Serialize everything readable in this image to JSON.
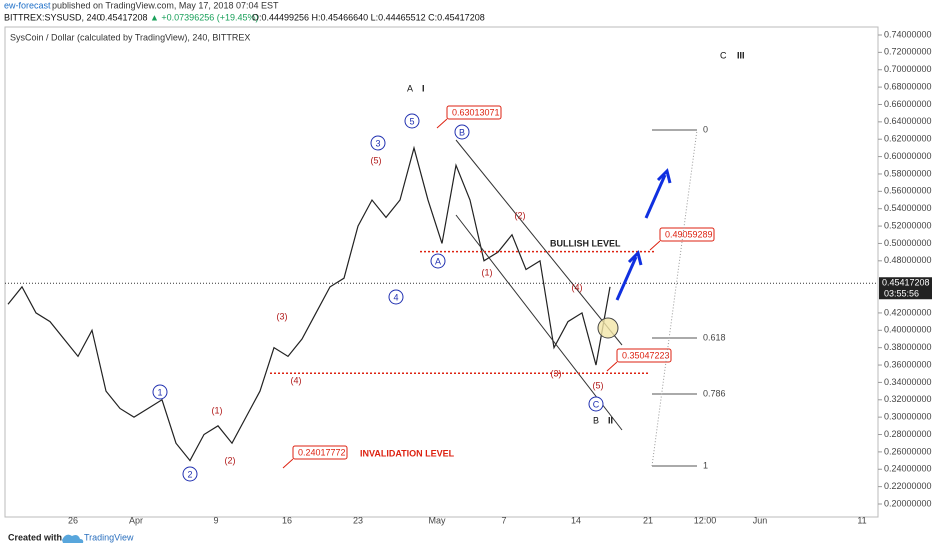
{
  "header": {
    "publisher": "ew-forecast",
    "published": "published on TradingView.com, May 17, 2018 07:04 EST",
    "symbol": "BITTREX:SYSUSD, 240",
    "last": "0.45417208",
    "change": "▲ +0.07396256 (+19.45%)",
    "ohlc": "O:0.44499256 H:0.45466640 L:0.44465512 C:0.45417208"
  },
  "chart_data": {
    "type": "line",
    "title": "SysCoin / Dollar (calculated by TradingView), 240, BITTREX",
    "values": [
      0.43,
      0.45,
      0.42,
      0.41,
      0.39,
      0.37,
      0.4,
      0.33,
      0.31,
      0.3,
      0.31,
      0.32,
      0.27,
      0.25,
      0.28,
      0.29,
      0.27,
      0.3,
      0.33,
      0.38,
      0.37,
      0.39,
      0.42,
      0.45,
      0.46,
      0.52,
      0.55,
      0.53,
      0.55,
      0.61,
      0.55,
      0.5,
      0.59,
      0.55,
      0.48,
      0.49,
      0.51,
      0.47,
      0.48,
      0.38,
      0.41,
      0.42,
      0.36,
      0.45
    ],
    "color": "#222222",
    "ylim": [
      0.2,
      0.74
    ],
    "yticks": [
      {
        "value": 0.74,
        "label": "0.74000000"
      },
      {
        "value": 0.72,
        "label": "0.72000000"
      },
      {
        "value": 0.7,
        "label": "0.70000000"
      },
      {
        "value": 0.68,
        "label": "0.68000000"
      },
      {
        "value": 0.66,
        "label": "0.66000000"
      },
      {
        "value": 0.64,
        "label": "0.64000000"
      },
      {
        "value": 0.62,
        "label": "0.62000000"
      },
      {
        "value": 0.6,
        "label": "0.60000000"
      },
      {
        "value": 0.58,
        "label": "0.58000000"
      },
      {
        "value": 0.56,
        "label": "0.56000000"
      },
      {
        "value": 0.54,
        "label": "0.54000000"
      },
      {
        "value": 0.52,
        "label": "0.52000000"
      },
      {
        "value": 0.5,
        "label": "0.50000000"
      },
      {
        "value": 0.48,
        "label": "0.48000000"
      },
      {
        "value": 0.42,
        "label": "0.42000000"
      },
      {
        "value": 0.4,
        "label": "0.40000000"
      },
      {
        "value": 0.38,
        "label": "0.38000000"
      },
      {
        "value": 0.36,
        "label": "0.36000000"
      },
      {
        "value": 0.34,
        "label": "0.34000000"
      },
      {
        "value": 0.32,
        "label": "0.32000000"
      },
      {
        "value": 0.3,
        "label": "0.30000000"
      },
      {
        "value": 0.28,
        "label": "0.28000000"
      },
      {
        "value": 0.26,
        "label": "0.26000000"
      },
      {
        "value": 0.24,
        "label": "0.24000000"
      },
      {
        "value": 0.22,
        "label": "0.22000000"
      },
      {
        "value": 0.2,
        "label": "0.20000000"
      }
    ],
    "xlabels": [
      "26",
      "Apr",
      "9",
      "16",
      "23",
      "May",
      "7",
      "14",
      "21",
      "12:00",
      "Jun",
      "11"
    ],
    "price_tag": {
      "value": 0.45417208,
      "label": "0.45417208",
      "timer": "03:55:56"
    },
    "levels": [
      {
        "value": 0.63013071,
        "label": "0.63013071"
      },
      {
        "value": 0.49059289,
        "label": "0.49059289"
      },
      {
        "value": 0.35047223,
        "label": "0.35047223"
      },
      {
        "value": 0.24017772,
        "label": "0.24017772"
      }
    ],
    "level_texts": [
      "BULLISH LEVEL",
      "INVALIDATION LEVEL"
    ],
    "fib": [
      "0",
      "0.618",
      "0.786",
      "1"
    ],
    "waves": [
      "5",
      "3",
      "1",
      "2",
      "4",
      "A",
      "B",
      "C",
      "(5)",
      "(3)",
      "(1)",
      "(2)",
      "(4)",
      "(2)",
      "(1)",
      "(4)",
      "(3)",
      "(5)"
    ],
    "degree": [
      "A",
      "I",
      "B",
      "II",
      "C",
      "III"
    ]
  },
  "footer": {
    "created": "Created with",
    "brand": "TradingView"
  }
}
